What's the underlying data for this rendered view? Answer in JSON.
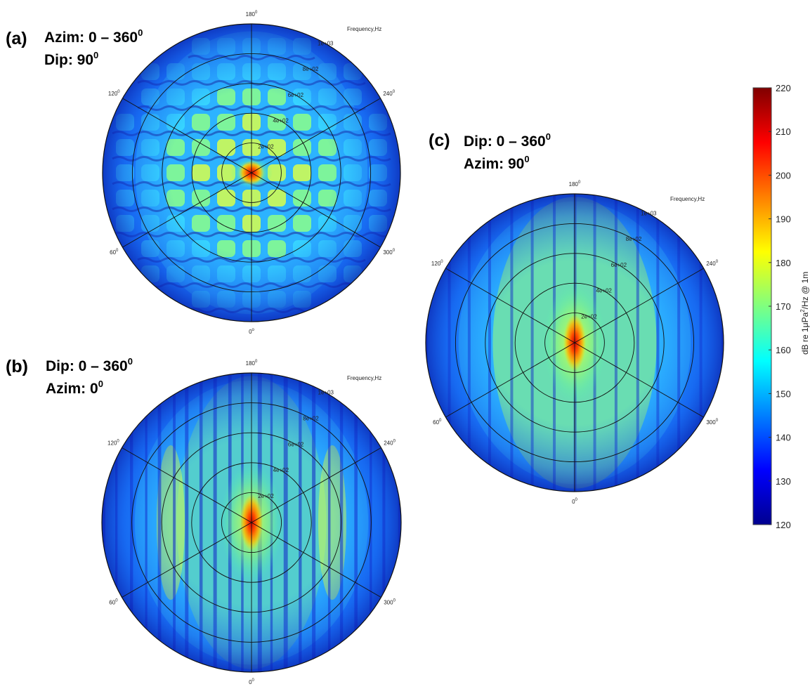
{
  "chart_data": [
    {
      "type": "heatmap",
      "panel_label": "(a)",
      "caption_lines": [
        {
          "text": "Azim: 0 – 360",
          "sup": "0"
        },
        {
          "text": "Dip: 90",
          "sup": "0"
        }
      ],
      "radial_axis_title": "Frequency,Hz",
      "radial_ticks": [
        "2e+02",
        "4e+02",
        "6e+02",
        "8e+02",
        "1e+03"
      ],
      "radial_tick_values": [
        200,
        400,
        600,
        800,
        1000
      ],
      "angle_labels": [
        {
          "angle": 0,
          "text": "0",
          "sup": "o"
        },
        {
          "angle": 60,
          "text": "60",
          "sup": "0"
        },
        {
          "angle": 120,
          "text": "120",
          "sup": "0"
        },
        {
          "angle": 180,
          "text": "180",
          "sup": "0"
        },
        {
          "angle": 240,
          "text": "240",
          "sup": "0"
        },
        {
          "angle": 300,
          "text": "300",
          "sup": "0"
        }
      ],
      "pattern": "lattice"
    },
    {
      "type": "heatmap",
      "panel_label": "(b)",
      "caption_lines": [
        {
          "text": "Dip: 0 – 360",
          "sup": "0"
        },
        {
          "text": "Azim: 0",
          "sup": "0"
        }
      ],
      "radial_axis_title": "Frequency,Hz",
      "radial_ticks": [
        "2e+02",
        "4e+02",
        "6e+02",
        "8e+02",
        "1e+03"
      ],
      "radial_tick_values": [
        200,
        400,
        600,
        800,
        1000
      ],
      "angle_labels": [
        {
          "angle": 0,
          "text": "0",
          "sup": "0"
        },
        {
          "angle": 60,
          "text": "60",
          "sup": "0"
        },
        {
          "angle": 120,
          "text": "120",
          "sup": "0"
        },
        {
          "angle": 180,
          "text": "180",
          "sup": "0"
        },
        {
          "angle": 240,
          "text": "240",
          "sup": "0"
        },
        {
          "angle": 300,
          "text": "300",
          "sup": "0"
        }
      ],
      "pattern": "stripes"
    },
    {
      "type": "heatmap",
      "panel_label": "(c)",
      "caption_lines": [
        {
          "text": "Dip: 0 – 360",
          "sup": "0"
        },
        {
          "text": "Azim: 90",
          "sup": "0"
        }
      ],
      "radial_axis_title": "Frequency,Hz",
      "radial_ticks": [
        "2e+02",
        "4e+02",
        "6e+02",
        "8e+02",
        "1e+03"
      ],
      "radial_tick_values": [
        200,
        400,
        600,
        800,
        1000
      ],
      "angle_labels": [
        {
          "angle": 0,
          "text": "0",
          "sup": "0"
        },
        {
          "angle": 60,
          "text": "60",
          "sup": "0"
        },
        {
          "angle": 120,
          "text": "120",
          "sup": "0"
        },
        {
          "angle": 180,
          "text": "180",
          "sup": "0"
        },
        {
          "angle": 240,
          "text": "240",
          "sup": "0"
        },
        {
          "angle": 300,
          "text": "300",
          "sup": "0"
        }
      ],
      "pattern": "stripes_soft"
    }
  ],
  "colorbar": {
    "label_prefix": "dB re 1μPa",
    "label_sup": "2",
    "label_suffix": "/Hz @ 1m",
    "min": 120,
    "max": 220,
    "ticks": [
      220,
      210,
      200,
      190,
      180,
      170,
      160,
      150,
      140,
      130,
      120
    ],
    "colormap": "jet",
    "colors": [
      "#00008f",
      "#0000ff",
      "#00ffff",
      "#ffff00",
      "#ff0000",
      "#800000"
    ]
  }
}
